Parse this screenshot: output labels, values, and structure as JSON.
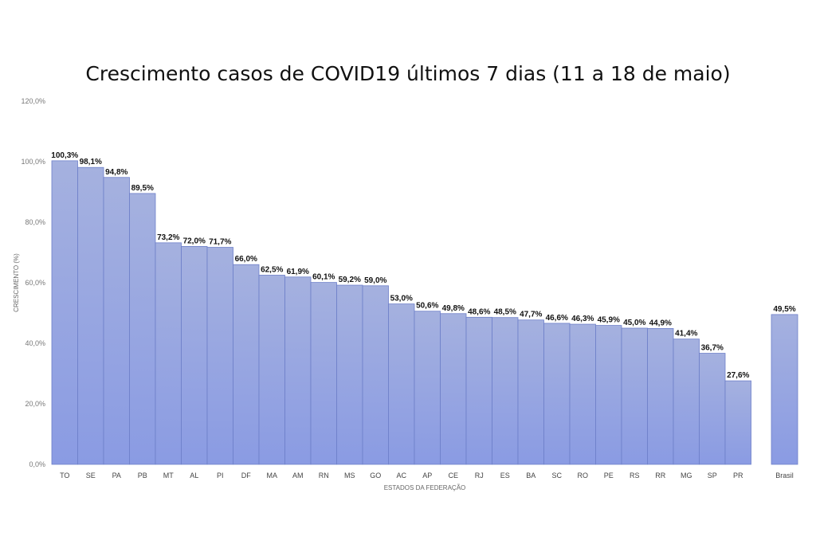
{
  "chart_data": {
    "type": "bar",
    "title": "Crescimento casos de COVID19 últimos 7 dias (11 a 18 de maio)",
    "xlabel": "ESTADOS DA FEDERAÇÃO",
    "ylabel": "CRESCIMENTO (%)",
    "ylim": [
      0,
      120
    ],
    "yticks": [
      0,
      20,
      40,
      60,
      80,
      100,
      120
    ],
    "ytick_labels": [
      "0,0%",
      "20,0%",
      "40,0%",
      "60,0%",
      "80,0%",
      "100,0%",
      "120,0%"
    ],
    "grid": false,
    "bar_color": "#9aa9e0",
    "categories": [
      "TO",
      "SE",
      "PA",
      "PB",
      "MT",
      "AL",
      "PI",
      "DF",
      "MA",
      "AM",
      "RN",
      "MS",
      "GO",
      "AC",
      "AP",
      "CE",
      "RJ",
      "ES",
      "BA",
      "SC",
      "RO",
      "PE",
      "RS",
      "RR",
      "MG",
      "SP",
      "PR"
    ],
    "values": [
      100.3,
      98.1,
      94.8,
      89.5,
      73.2,
      72.0,
      71.7,
      66.0,
      62.5,
      61.9,
      60.1,
      59.2,
      59.0,
      53.0,
      50.6,
      49.8,
      48.6,
      48.5,
      47.7,
      46.6,
      46.3,
      45.9,
      45.0,
      44.9,
      41.4,
      36.7,
      27.6
    ],
    "value_labels": [
      "100,3%",
      "98,1%",
      "94,8%",
      "89,5%",
      "73,2%",
      "72,0%",
      "71,7%",
      "66,0%",
      "62,5%",
      "61,9%",
      "60,1%",
      "59,2%",
      "59,0%",
      "53,0%",
      "50,6%",
      "49,8%",
      "48,6%",
      "48,5%",
      "47,7%",
      "46,6%",
      "46,3%",
      "45,9%",
      "45,0%",
      "44,9%",
      "41,4%",
      "36,7%",
      "27,6%"
    ],
    "separate_bar": {
      "category": "Brasil",
      "value": 49.5,
      "value_label": "49,5%"
    }
  }
}
